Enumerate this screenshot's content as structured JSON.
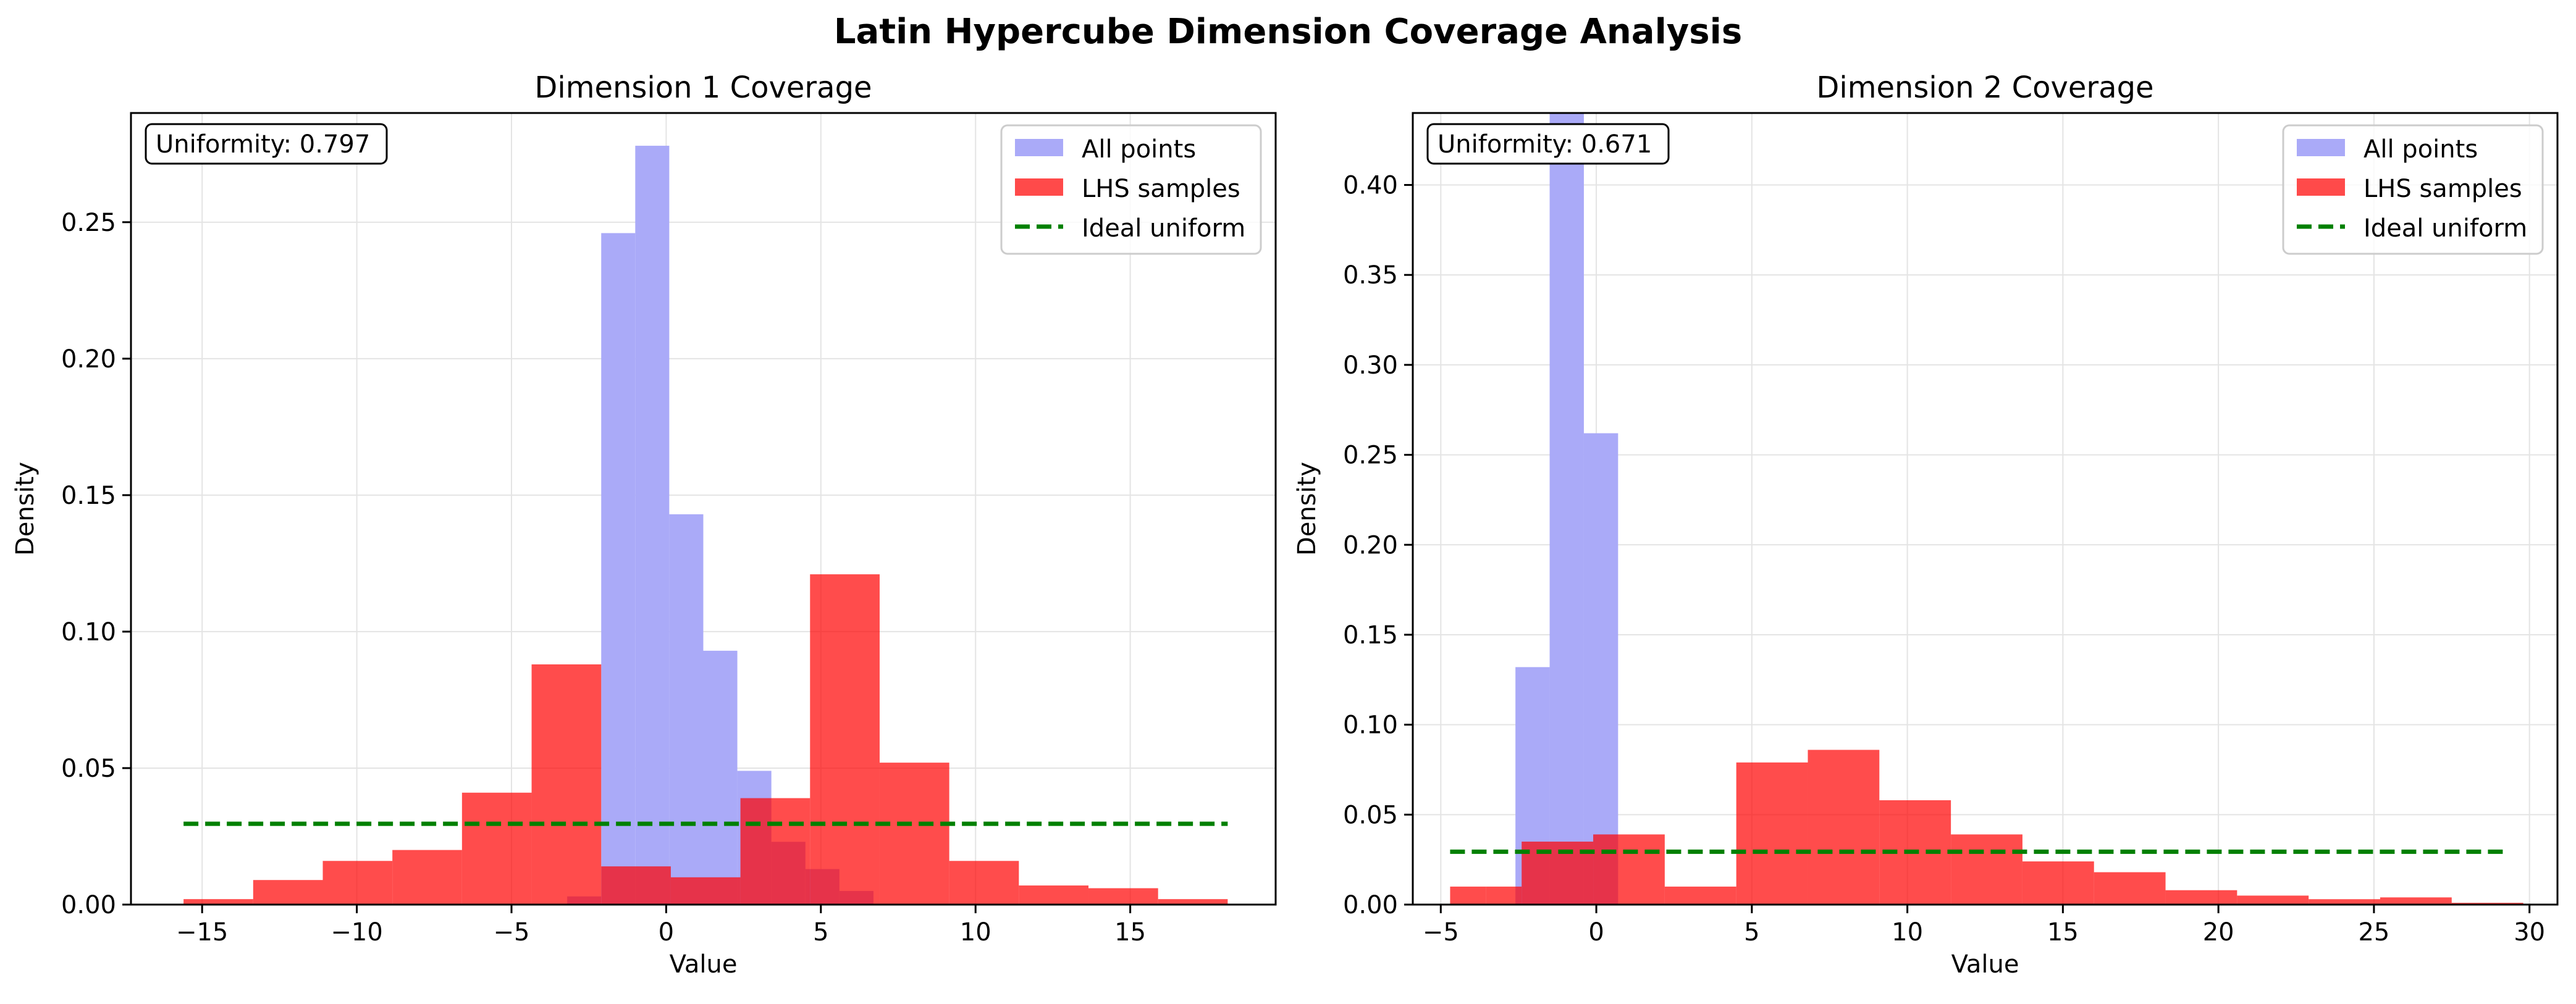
{
  "figure": {
    "suptitle": "Latin Hypercube Dimension Coverage Analysis"
  },
  "colors": {
    "all_points": "#aaaaf8",
    "lhs_samples": "#ff4a4a",
    "overlap": "#e33355",
    "ideal_uniform": "#008000",
    "grid": "#e4e4e4"
  },
  "chart_data": [
    {
      "type": "bar",
      "title": "Dimension 1 Coverage",
      "xlabel": "Value",
      "ylabel": "Density",
      "xlim": [
        -17.3,
        19.7
      ],
      "ylim": [
        0,
        0.29
      ],
      "xticks": [
        -15,
        -10,
        -5,
        0,
        5,
        10,
        15
      ],
      "xtick_labels": [
        "−15",
        "−10",
        "−5",
        "0",
        "5",
        "10",
        "15"
      ],
      "yticks": [
        0.0,
        0.05,
        0.1,
        0.15,
        0.2,
        0.25
      ],
      "ytick_labels": [
        "0.00",
        "0.05",
        "0.10",
        "0.15",
        "0.20",
        "0.25"
      ],
      "grid": true,
      "legend_position": "top-right",
      "legend": [
        "All points",
        "LHS samples",
        "Ideal uniform"
      ],
      "annotation": "Uniformity: 0.797",
      "series": [
        {
          "name": "All points",
          "kind": "histogram",
          "bin_edges": [
            -3.2,
            -2.1,
            -1.0,
            0.1,
            1.2,
            2.3,
            3.4,
            4.5,
            5.6,
            6.7
          ],
          "values": [
            0.003,
            0.246,
            0.278,
            0.143,
            0.093,
            0.049,
            0.023,
            0.013,
            0.005
          ]
        },
        {
          "name": "LHS samples",
          "kind": "histogram",
          "bin_edges": [
            -15.6,
            -13.35,
            -11.1,
            -8.85,
            -6.6,
            -4.35,
            -2.1,
            0.15,
            2.4,
            4.65,
            6.9,
            9.15,
            11.4,
            13.65,
            15.9,
            18.15
          ],
          "values": [
            0.002,
            0.009,
            0.016,
            0.02,
            0.041,
            0.088,
            0.014,
            0.01,
            0.039,
            0.121,
            0.052,
            0.016,
            0.007,
            0.006,
            0.002
          ]
        },
        {
          "name": "Ideal uniform",
          "kind": "line",
          "x": [
            -15.6,
            18.15
          ],
          "y": [
            0.0296,
            0.0296
          ]
        }
      ]
    },
    {
      "type": "bar",
      "title": "Dimension 2 Coverage",
      "xlabel": "Value",
      "ylabel": "Density",
      "xlim": [
        -5.9,
        30.9
      ],
      "ylim": [
        0,
        0.44
      ],
      "xticks": [
        -5,
        0,
        5,
        10,
        15,
        20,
        25,
        30
      ],
      "xtick_labels": [
        "−5",
        "0",
        "5",
        "10",
        "15",
        "20",
        "25",
        "30"
      ],
      "yticks": [
        0.0,
        0.05,
        0.1,
        0.15,
        0.2,
        0.25,
        0.3,
        0.35,
        0.4
      ],
      "ytick_labels": [
        "0.00",
        "0.05",
        "0.10",
        "0.15",
        "0.20",
        "0.25",
        "0.30",
        "0.35",
        "0.40"
      ],
      "grid": true,
      "legend_position": "top-right",
      "legend": [
        "All points",
        "LHS samples",
        "Ideal uniform"
      ],
      "annotation": "Uniformity: 0.671",
      "series": [
        {
          "name": "All points",
          "kind": "histogram",
          "bin_edges": [
            -2.6,
            -1.5,
            -0.4,
            0.7
          ],
          "values": [
            0.132,
            0.44,
            0.262
          ]
        },
        {
          "name": "LHS samples",
          "kind": "histogram",
          "bin_edges": [
            -4.7,
            -3.55,
            -2.4,
            -0.1,
            2.2,
            4.5,
            6.8,
            9.1,
            11.4,
            13.7,
            16.0,
            18.3,
            20.6,
            22.9,
            25.2,
            27.5,
            29.8
          ],
          "values": [
            0.01,
            0.01,
            0.035,
            0.039,
            0.01,
            0.079,
            0.086,
            0.058,
            0.039,
            0.024,
            0.018,
            0.008,
            0.005,
            0.003,
            0.004,
            0.001
          ]
        },
        {
          "name": "Ideal uniform",
          "kind": "line",
          "x": [
            -4.7,
            29.3
          ],
          "y": [
            0.0294,
            0.0294
          ]
        }
      ]
    }
  ]
}
